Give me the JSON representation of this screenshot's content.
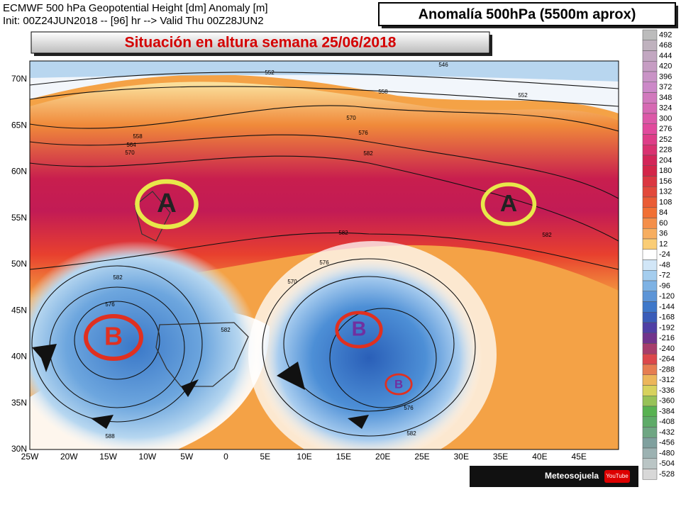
{
  "header": {
    "line1": "ECMWF 500 hPa Geopotential Height [dm] Anomaly [m]",
    "line2": "Init: 00Z24JUN2018 -- [96] hr --> Valid Thu 00Z28JUN2"
  },
  "title": "Anomalía 500hPa (5500m aprox)",
  "subtitle": "Situación en altura semana 25/06/2018",
  "lat_labels": [
    "70N",
    "65N",
    "60N",
    "55N",
    "50N",
    "45N",
    "40N",
    "35N",
    "30N"
  ],
  "lon_labels": [
    "25W",
    "20W",
    "15W",
    "10W",
    "5W",
    "0",
    "5E",
    "10E",
    "15E",
    "20E",
    "25E",
    "30E",
    "35E",
    "40E",
    "45E"
  ],
  "colorbar": [
    492,
    468,
    444,
    420,
    396,
    372,
    348,
    324,
    300,
    276,
    252,
    228,
    204,
    180,
    156,
    132,
    108,
    84,
    60,
    36,
    12,
    -24,
    -48,
    -72,
    -96,
    -120,
    -144,
    -168,
    -192,
    -216,
    -240,
    -264,
    -288,
    -312,
    -336,
    -360,
    -384,
    -408,
    -432,
    -456,
    -480,
    -504,
    -528
  ],
  "contour_labels": [
    "552",
    "546",
    "552",
    "558",
    "558",
    "564",
    "570",
    "570",
    "576",
    "582",
    "582",
    "582",
    "576",
    "570",
    "582",
    "576",
    "582",
    "576",
    "582",
    "588"
  ],
  "systems": [
    "A",
    "A",
    "B",
    "B",
    "B"
  ],
  "footer": {
    "brand": "Meteosojuela",
    "youtube": "YouTube"
  }
}
